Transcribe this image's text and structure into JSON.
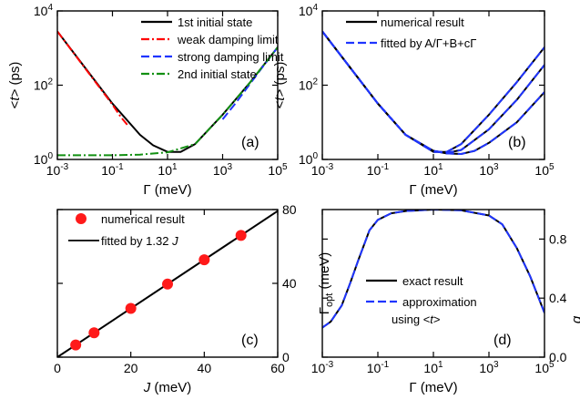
{
  "chart_data": [
    {
      "panel": "(a)",
      "type": "line",
      "xscale": "log",
      "yscale": "log",
      "xlim": [
        0.001,
        100000
      ],
      "ylim": [
        1,
        10000
      ],
      "xlabel": "Γ (meV)",
      "ylabel": "<t> (ps)",
      "xticks": [
        "10^-3",
        "10^-1",
        "10^1",
        "10^3",
        "10^5"
      ],
      "yticks": [
        "10^0",
        "10^2",
        "10^4"
      ],
      "legend_position": "top-right",
      "series": [
        {
          "name": "1st initial state",
          "color": "#000000",
          "style": "solid",
          "x": [
            0.001,
            0.01,
            0.1,
            1,
            3,
            10,
            30,
            100,
            1000,
            10000,
            100000
          ],
          "y": [
            2800,
            300,
            32,
            4.6,
            2.4,
            1.6,
            1.6,
            2.6,
            16,
            120,
            1050
          ]
        },
        {
          "name": "weak damping limit",
          "color": "#ff0000",
          "style": "dash-dot",
          "x": [
            0.001,
            0.01,
            0.1,
            0.2,
            0.4
          ],
          "y": [
            2800,
            290,
            30,
            14,
            7.5
          ]
        },
        {
          "name": "strong damping limit",
          "color": "#1f35ff",
          "style": "dashed",
          "x": [
            1000,
            3000,
            10000,
            30000,
            100000
          ],
          "y": [
            12,
            33,
            110,
            330,
            1050
          ]
        },
        {
          "name": "2nd initial state",
          "color": "#129012",
          "style": "dash-dot",
          "x": [
            0.001,
            0.01,
            0.1,
            1,
            10,
            100,
            1000,
            10000,
            100000
          ],
          "y": [
            1.3,
            1.3,
            1.3,
            1.35,
            1.55,
            2.6,
            16,
            120,
            1050
          ]
        }
      ],
      "panel_label": "(a)"
    },
    {
      "panel": "(b)",
      "type": "line",
      "xscale": "log",
      "yscale": "log",
      "xlim": [
        0.001,
        100000
      ],
      "ylim": [
        1,
        10000
      ],
      "xlabel": "Γ (meV)",
      "ylabel": "<t> (ps)",
      "xticks": [
        "10^-3",
        "10^-1",
        "10^1",
        "10^3",
        "10^5"
      ],
      "yticks": [
        "10^0",
        "10^2",
        "10^4"
      ],
      "legend_position": "top-right",
      "legend": [
        "numerical result",
        "fitted by A/Γ+B+cΓ"
      ],
      "series": [
        {
          "name": "numerical result",
          "color": "#000000",
          "style": "solid",
          "x": [
            0.001,
            0.01,
            0.1,
            1,
            10,
            30,
            100,
            1000,
            10000,
            100000
          ],
          "y": [
            2800,
            300,
            32,
            4.6,
            1.6,
            1.6,
            2.6,
            16,
            120,
            1050
          ]
        },
        {
          "color": "#000000",
          "style": "solid",
          "x": [
            0.001,
            0.01,
            0.1,
            1,
            10,
            30,
            100,
            1000,
            10000,
            100000
          ],
          "y": [
            2800,
            300,
            32,
            4.6,
            1.7,
            1.5,
            1.8,
            6.5,
            40,
            350
          ]
        },
        {
          "color": "#000000",
          "style": "solid",
          "x": [
            0.001,
            0.01,
            0.1,
            1,
            10,
            30,
            100,
            300,
            1000,
            10000,
            100000
          ],
          "y": [
            2800,
            300,
            32,
            4.6,
            1.7,
            1.45,
            1.4,
            1.7,
            2.8,
            10,
            65
          ]
        },
        {
          "name": "fitted by A/Γ+B+cΓ",
          "color": "#1f35ff",
          "style": "dashed",
          "x": [
            0.001,
            0.01,
            0.1,
            1,
            10,
            30,
            100,
            1000,
            10000,
            100000
          ],
          "y": [
            2800,
            300,
            32,
            4.6,
            1.6,
            1.6,
            2.6,
            16,
            120,
            1050
          ]
        },
        {
          "color": "#1f35ff",
          "style": "dashed",
          "x": [
            0.001,
            0.01,
            0.1,
            1,
            10,
            30,
            100,
            1000,
            10000,
            100000
          ],
          "y": [
            2800,
            300,
            32,
            4.6,
            1.7,
            1.5,
            1.8,
            6.5,
            40,
            350
          ]
        },
        {
          "color": "#1f35ff",
          "style": "dashed",
          "x": [
            0.001,
            0.01,
            0.1,
            1,
            10,
            30,
            100,
            300,
            1000,
            10000,
            100000
          ],
          "y": [
            2800,
            300,
            32,
            4.6,
            1.7,
            1.45,
            1.4,
            1.7,
            2.8,
            10,
            65
          ]
        }
      ],
      "panel_label": "(b)"
    },
    {
      "panel": "(c)",
      "type": "scatter",
      "xlim": [
        0,
        60
      ],
      "ylim": [
        0,
        80
      ],
      "xlabel": "J (meV)",
      "ylabel": "Γ_opt (meV)",
      "xticks": [
        "0",
        "20",
        "40",
        "60"
      ],
      "yticks": [
        "0",
        "40",
        "80"
      ],
      "legend_position": "top-left",
      "series": [
        {
          "name": "numerical result",
          "color": "#ff1a1a",
          "marker": "circle",
          "x": [
            5,
            10,
            20,
            30,
            40,
            50
          ],
          "y": [
            6.6,
            13.2,
            26.4,
            39.6,
            52.8,
            66
          ]
        },
        {
          "name": "fitted by 1.32 J",
          "color": "#000000",
          "style": "solid",
          "x": [
            0,
            60
          ],
          "y": [
            0,
            79.2
          ]
        }
      ],
      "panel_label": "(c)"
    },
    {
      "panel": "(d)",
      "type": "line",
      "xscale": "log",
      "xlim": [
        0.001,
        100000
      ],
      "ylim": [
        0,
        1
      ],
      "xlabel": "Γ (meV)",
      "ylabel": "q",
      "xticks": [
        "10^-3",
        "10^-1",
        "10^1",
        "10^3",
        "10^5"
      ],
      "yticks": [
        "0.0",
        "0.4",
        "0.8"
      ],
      "legend_position": "center",
      "legend": [
        "exact result",
        "approximation",
        "using <t>"
      ],
      "series": [
        {
          "name": "exact result",
          "color": "#000000",
          "style": "solid",
          "x": [
            0.001,
            0.002,
            0.005,
            0.01,
            0.02,
            0.05,
            0.1,
            0.3,
            1,
            10,
            100,
            1000,
            3000,
            10000,
            30000,
            100000
          ],
          "y": [
            0.2,
            0.24,
            0.35,
            0.5,
            0.66,
            0.86,
            0.93,
            0.975,
            0.99,
            1.0,
            0.995,
            0.96,
            0.9,
            0.74,
            0.55,
            0.3
          ]
        },
        {
          "name": "approximation using <t>",
          "color": "#1f35ff",
          "style": "dashed",
          "x": [
            0.001,
            0.002,
            0.005,
            0.01,
            0.02,
            0.05,
            0.1,
            0.3,
            1,
            10,
            100,
            1000,
            3000,
            10000,
            30000,
            100000
          ],
          "y": [
            0.2,
            0.24,
            0.35,
            0.5,
            0.66,
            0.86,
            0.93,
            0.975,
            0.99,
            1.0,
            0.995,
            0.96,
            0.9,
            0.74,
            0.55,
            0.3
          ]
        }
      ],
      "panel_label": "(d)"
    }
  ]
}
